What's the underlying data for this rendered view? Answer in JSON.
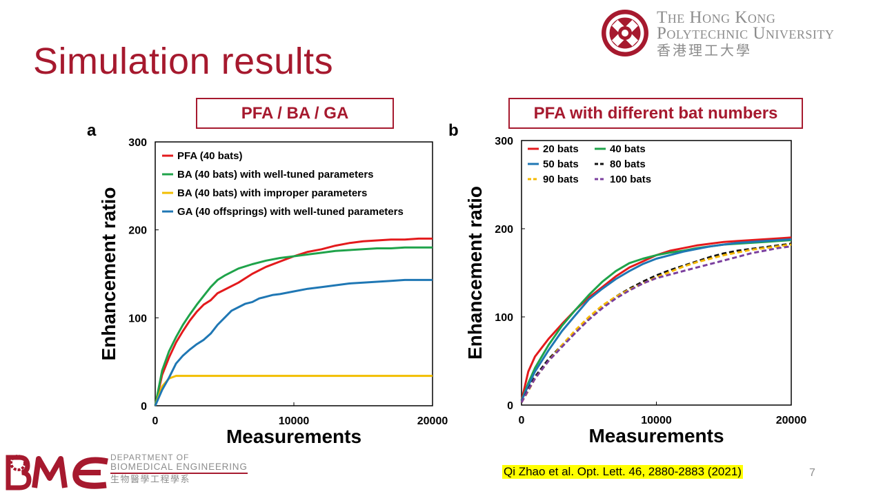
{
  "slide": {
    "title": "Simulation results",
    "page_number": "7",
    "citation": "Qi Zhao et al. Opt. Lett. 46, 2880-2883 (2021)"
  },
  "university": {
    "name_line1": "The Hong Kong",
    "name_line2": "Polytechnic University",
    "name_chinese": "香港理工大學",
    "brand_color": "#a6192e"
  },
  "department": {
    "line1": "Department of",
    "line2": "Biomedical Engineering",
    "line3": "生物醫學工程學系"
  },
  "panels": {
    "a": {
      "letter": "a",
      "header": "PFA / BA / GA"
    },
    "b": {
      "letter": "b",
      "header": "PFA with different bat numbers"
    }
  },
  "chart_data": [
    {
      "type": "line",
      "panel": "a",
      "xlabel": "Measurements",
      "ylabel": "Enhancement ratio",
      "xlim": [
        0,
        20000
      ],
      "ylim": [
        0,
        300
      ],
      "xticks": [
        0,
        10000,
        20000
      ],
      "yticks": [
        0,
        100,
        200,
        300
      ],
      "legend_position": "top-left",
      "legend_columns": 1,
      "grid": false,
      "series": [
        {
          "name": "PFA (40 bats)",
          "color": "#e31a1c",
          "dash": false,
          "x": [
            0,
            500,
            1000,
            1500,
            2000,
            2500,
            3000,
            3500,
            4000,
            4500,
            5000,
            6000,
            7000,
            8000,
            9000,
            10000,
            11000,
            12000,
            13000,
            14000,
            15000,
            16000,
            17000,
            18000,
            19000,
            20000
          ],
          "y": [
            0,
            35,
            55,
            72,
            85,
            97,
            107,
            115,
            120,
            128,
            132,
            140,
            150,
            158,
            164,
            170,
            175,
            178,
            182,
            185,
            187,
            188,
            189,
            189,
            190,
            190
          ]
        },
        {
          "name": "BA (40 bats) with well-tuned parameters",
          "color": "#1fa34a",
          "dash": false,
          "x": [
            0,
            500,
            1000,
            1500,
            2000,
            2500,
            3000,
            3500,
            4000,
            4500,
            5000,
            6000,
            7000,
            8000,
            9000,
            10000,
            11000,
            12000,
            13000,
            14000,
            15000,
            16000,
            17000,
            18000,
            19000,
            20000
          ],
          "y": [
            0,
            40,
            62,
            78,
            92,
            104,
            115,
            125,
            135,
            143,
            148,
            156,
            161,
            165,
            168,
            170,
            172,
            174,
            176,
            177,
            178,
            179,
            179,
            180,
            180,
            180
          ]
        },
        {
          "name": "BA (40 bats) with improper parameters",
          "color": "#f2be00",
          "dash": false,
          "x": [
            0,
            500,
            1000,
            1500,
            2000,
            5000,
            10000,
            15000,
            20000
          ],
          "y": [
            0,
            22,
            31,
            34,
            34,
            34,
            34,
            34,
            34
          ]
        },
        {
          "name": "GA (40 offsprings) with well-tuned parameters",
          "color": "#1f77b4",
          "dash": false,
          "x": [
            0,
            500,
            1000,
            1500,
            2000,
            2500,
            3000,
            3500,
            4000,
            4500,
            5000,
            5500,
            6000,
            6500,
            7000,
            7500,
            8000,
            8500,
            9000,
            10000,
            11000,
            12000,
            13000,
            14000,
            15000,
            16000,
            17000,
            18000,
            19000,
            20000
          ],
          "y": [
            0,
            18,
            32,
            48,
            57,
            64,
            70,
            75,
            82,
            92,
            100,
            108,
            112,
            116,
            118,
            122,
            124,
            126,
            127,
            130,
            133,
            135,
            137,
            139,
            140,
            141,
            142,
            143,
            143,
            143
          ]
        }
      ]
    },
    {
      "type": "line",
      "panel": "b",
      "xlabel": "Measurements",
      "ylabel": "Enhancement ratio",
      "xlim": [
        0,
        20000
      ],
      "ylim": [
        0,
        300
      ],
      "xticks": [
        0,
        10000,
        20000
      ],
      "yticks": [
        0,
        100,
        200,
        300
      ],
      "legend_position": "top-left",
      "legend_columns": 2,
      "grid": false,
      "series": [
        {
          "name": "20 bats",
          "color": "#e31a1c",
          "dash": false,
          "x": [
            0,
            500,
            1000,
            2000,
            3000,
            4000,
            5000,
            6000,
            7000,
            8000,
            9000,
            10000,
            11000,
            12000,
            13000,
            14000,
            15000,
            16000,
            17000,
            18000,
            19000,
            20000
          ],
          "y": [
            5,
            38,
            55,
            75,
            92,
            108,
            122,
            134,
            146,
            156,
            163,
            170,
            175,
            178,
            181,
            183,
            185,
            186,
            187,
            188,
            189,
            190
          ]
        },
        {
          "name": "40 bats",
          "color": "#1fa34a",
          "dash": false,
          "x": [
            0,
            500,
            1000,
            2000,
            3000,
            4000,
            5000,
            6000,
            7000,
            8000,
            9000,
            10000,
            11000,
            12000,
            13000,
            14000,
            15000,
            16000,
            17000,
            18000,
            19000,
            20000
          ],
          "y": [
            5,
            25,
            42,
            68,
            90,
            108,
            125,
            140,
            152,
            161,
            166,
            170,
            173,
            175,
            178,
            180,
            182,
            183,
            184,
            185,
            186,
            187
          ]
        },
        {
          "name": "50 bats",
          "color": "#1f77b4",
          "dash": false,
          "x": [
            0,
            500,
            1000,
            2000,
            3000,
            4000,
            5000,
            6000,
            7000,
            8000,
            9000,
            10000,
            11000,
            12000,
            13000,
            14000,
            15000,
            16000,
            17000,
            18000,
            19000,
            20000
          ],
          "y": [
            5,
            22,
            38,
            62,
            84,
            102,
            120,
            132,
            143,
            152,
            160,
            166,
            170,
            174,
            177,
            180,
            182,
            184,
            185,
            186,
            187,
            188
          ]
        },
        {
          "name": "80 bats",
          "color": "#111111",
          "dash": true,
          "x": [
            0,
            500,
            1000,
            2000,
            3000,
            4000,
            5000,
            6000,
            7000,
            8000,
            9000,
            10000,
            11000,
            12000,
            13000,
            14000,
            15000,
            16000,
            17000,
            18000,
            19000,
            20000
          ],
          "y": [
            3,
            18,
            32,
            52,
            68,
            82,
            98,
            112,
            123,
            132,
            140,
            147,
            153,
            158,
            163,
            168,
            172,
            175,
            177,
            179,
            181,
            183
          ]
        },
        {
          "name": "90 bats",
          "color": "#f5b800",
          "dash": true,
          "x": [
            0,
            500,
            1000,
            2000,
            3000,
            4000,
            5000,
            6000,
            7000,
            8000,
            9000,
            10000,
            11000,
            12000,
            13000,
            14000,
            15000,
            16000,
            17000,
            18000,
            19000,
            20000
          ],
          "y": [
            3,
            16,
            30,
            50,
            68,
            85,
            100,
            113,
            123,
            131,
            138,
            145,
            151,
            157,
            162,
            166,
            170,
            173,
            176,
            178,
            180,
            182
          ]
        },
        {
          "name": "100 bats",
          "color": "#7b3f9e",
          "dash": true,
          "x": [
            0,
            500,
            1000,
            2000,
            3000,
            4000,
            5000,
            6000,
            7000,
            8000,
            9000,
            10000,
            11000,
            12000,
            13000,
            14000,
            15000,
            16000,
            17000,
            18000,
            19000,
            20000
          ],
          "y": [
            3,
            17,
            30,
            50,
            66,
            82,
            97,
            110,
            121,
            130,
            138,
            144,
            148,
            152,
            156,
            160,
            164,
            168,
            172,
            175,
            178,
            180
          ]
        }
      ]
    }
  ]
}
